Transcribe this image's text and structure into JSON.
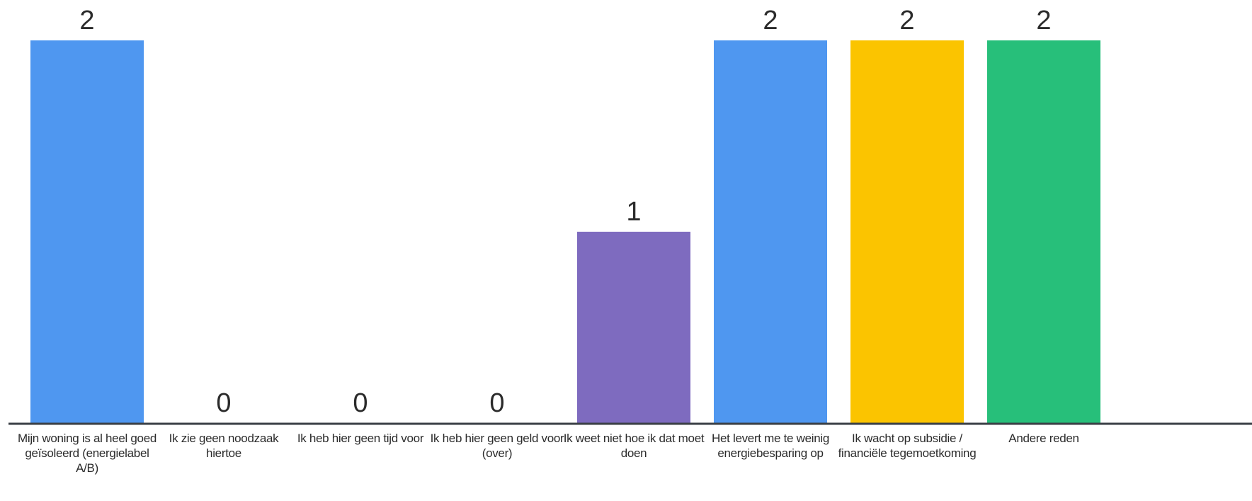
{
  "chart_data": {
    "type": "bar",
    "categories": [
      "Mijn woning is al heel goed geïsoleerd (energielabel A/B)",
      "Ik zie geen noodzaak hiertoe",
      "Ik heb hier geen tijd voor",
      "Ik heb hier geen geld voor (over)",
      "Ik weet niet hoe ik dat moet doen",
      "Het levert me te weinig energiebesparing op",
      "Ik wacht op subsidie / financiële tegemoetkoming",
      "Andere reden"
    ],
    "values": [
      2,
      0,
      0,
      0,
      1,
      2,
      2,
      2
    ],
    "colors": [
      "#4f97f0",
      "#4f97f0",
      "#4f97f0",
      "#4f97f0",
      "#7e6bbf",
      "#4f97f0",
      "#fbc400",
      "#27bf7a"
    ],
    "ylim": [
      0,
      2
    ],
    "title": "",
    "xlabel": "",
    "ylabel": "",
    "grid": false,
    "legend": "none",
    "data_labels": true
  }
}
